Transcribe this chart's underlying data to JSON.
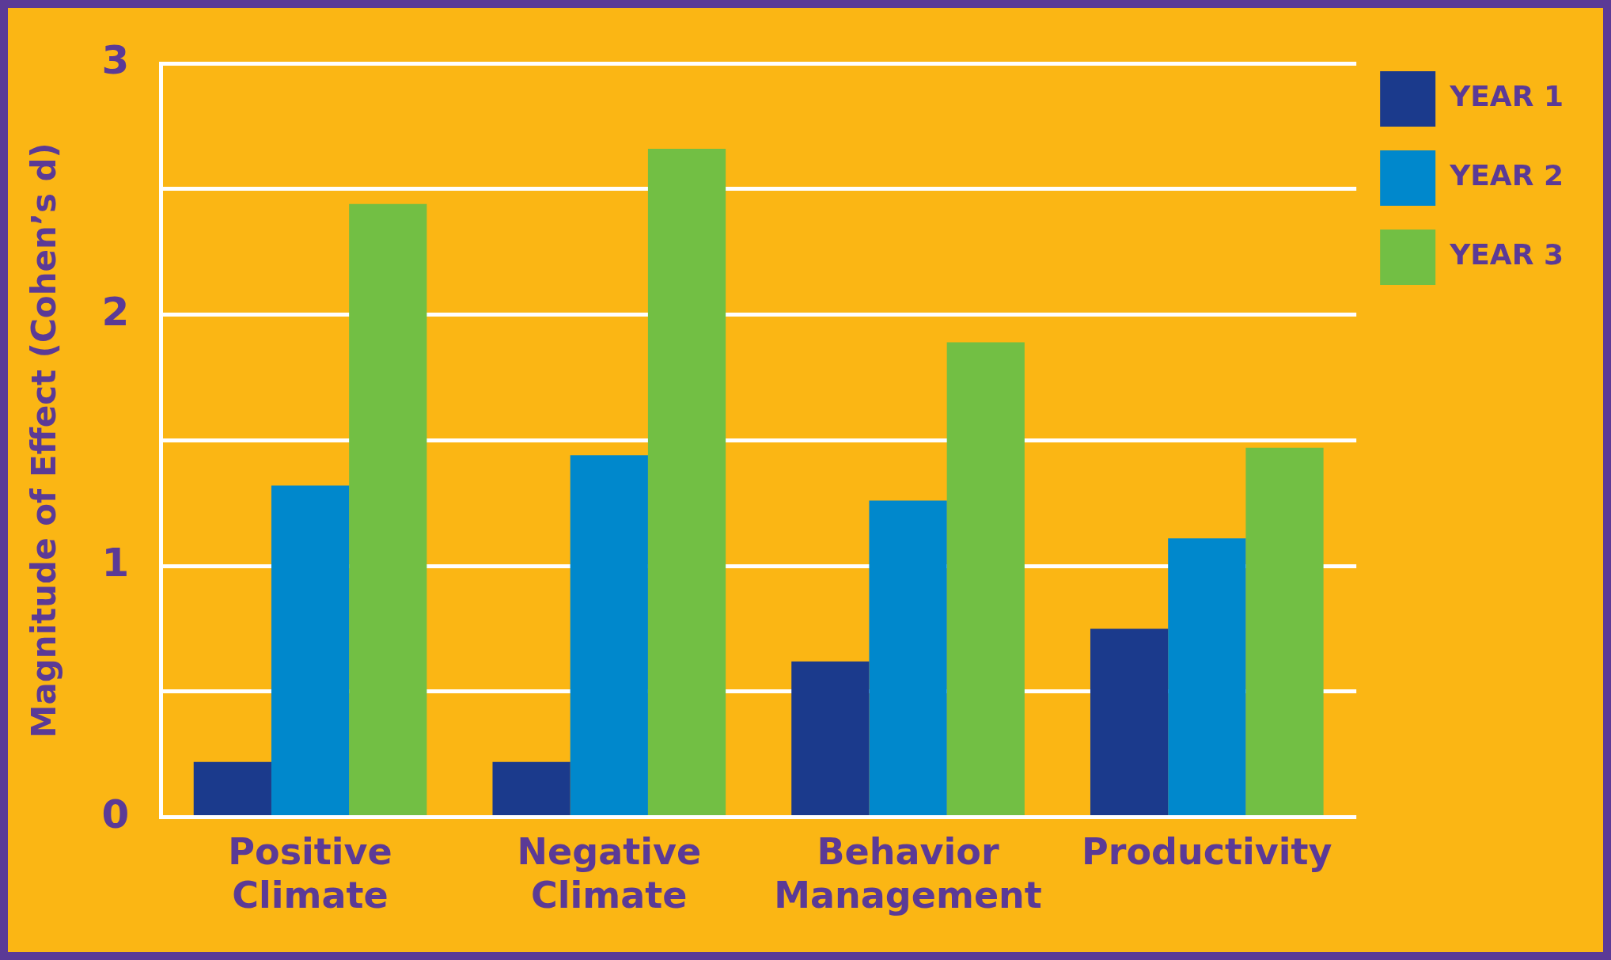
{
  "chart_data": {
    "type": "bar",
    "ylabel": "Magnitude of Effect (Cohen’s d)",
    "categories": [
      "Positive Climate",
      "Negative Climate",
      "Behavior Management",
      "Productivity"
    ],
    "series": [
      {
        "name": "YEAR 1",
        "color": "#1b3a8c",
        "values": [
          0.22,
          0.22,
          0.62,
          0.75
        ]
      },
      {
        "name": "YEAR 2",
        "color": "#0088cc",
        "values": [
          1.32,
          1.44,
          1.26,
          1.11
        ]
      },
      {
        "name": "YEAR 3",
        "color": "#72bf44",
        "values": [
          2.44,
          2.66,
          1.89,
          1.47
        ]
      }
    ],
    "ylim": [
      0,
      3
    ],
    "yticks": [
      0,
      {
        "value": 0.5,
        "label": null
      },
      1,
      {
        "value": 1.5,
        "label": null
      },
      2,
      {
        "value": 2.5,
        "label": null
      },
      3
    ],
    "grid": "y",
    "legend": "top right"
  }
}
